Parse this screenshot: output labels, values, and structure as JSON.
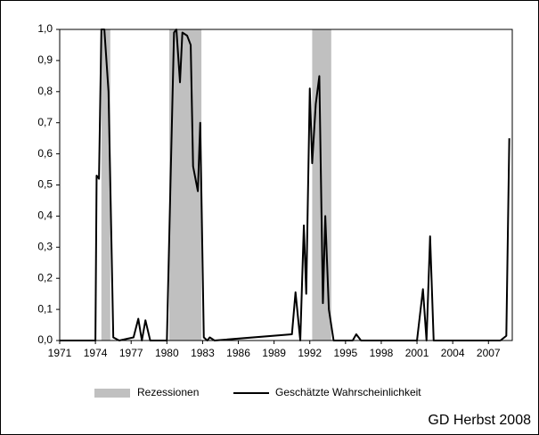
{
  "chart_data": {
    "type": "line",
    "xlim": [
      1971,
      2009
    ],
    "xticks": [
      1971,
      1974,
      1977,
      1980,
      1983,
      1986,
      1989,
      1992,
      1995,
      1998,
      2001,
      2004,
      2007
    ],
    "ylim": [
      0,
      1
    ],
    "yticks": [
      {
        "value": 0,
        "label": "0,0"
      },
      {
        "value": 0.1,
        "label": "0,1"
      },
      {
        "value": 0.2,
        "label": "0,2"
      },
      {
        "value": 0.3,
        "label": "0,3"
      },
      {
        "value": 0.4,
        "label": "0,4"
      },
      {
        "value": 0.5,
        "label": "0,5"
      },
      {
        "value": 0.6,
        "label": "0,6"
      },
      {
        "value": 0.7,
        "label": "0,7"
      },
      {
        "value": 0.8,
        "label": "0,8"
      },
      {
        "value": 0.9,
        "label": "0,9"
      },
      {
        "value": 1,
        "label": "1,0"
      }
    ],
    "recessions": {
      "name": "Rezessionen",
      "color": "#c0c0c0",
      "periods": [
        [
          1974.5,
          1975.25
        ],
        [
          1980.2,
          1982.9
        ],
        [
          1992.2,
          1993.8
        ]
      ]
    },
    "series": [
      {
        "name": "Geschätzte Wahrscheinlichkeit",
        "color": "#000000",
        "x": [
          1971,
          1974,
          1974.1,
          1974.3,
          1974.5,
          1974.75,
          1975.1,
          1975.5,
          1976,
          1977.2,
          1977.6,
          1977.9,
          1978.2,
          1978.6,
          1980,
          1980.3,
          1980.6,
          1980.8,
          1981.1,
          1981.3,
          1981.7,
          1982,
          1982.2,
          1982.6,
          1982.8,
          1983.1,
          1983.4,
          1983.6,
          1984,
          1990.5,
          1990.8,
          1991.2,
          1991.5,
          1991.7,
          1992,
          1992.2,
          1992.5,
          1992.8,
          1993.1,
          1993.3,
          1993.6,
          1994,
          1995.6,
          1995.9,
          1996.3,
          2001,
          2001.5,
          2001.8,
          2002.1,
          2002.4,
          2008,
          2008.5,
          2008.75
        ],
        "values": [
          0,
          0,
          0.53,
          0.52,
          1,
          1,
          0.8,
          0.01,
          0,
          0.01,
          0.07,
          0,
          0.065,
          0,
          0,
          0.5,
          0.99,
          1,
          0.83,
          0.99,
          0.98,
          0.95,
          0.56,
          0.48,
          0.7,
          0.01,
          0,
          0.01,
          0,
          0.02,
          0.155,
          0,
          0.37,
          0.15,
          0.81,
          0.57,
          0.76,
          0.85,
          0.12,
          0.4,
          0.1,
          0,
          0,
          0.02,
          0,
          0,
          0.165,
          0,
          0.335,
          0,
          0,
          0.015,
          0.65
        ]
      }
    ],
    "source": "GD Herbst 2008"
  }
}
